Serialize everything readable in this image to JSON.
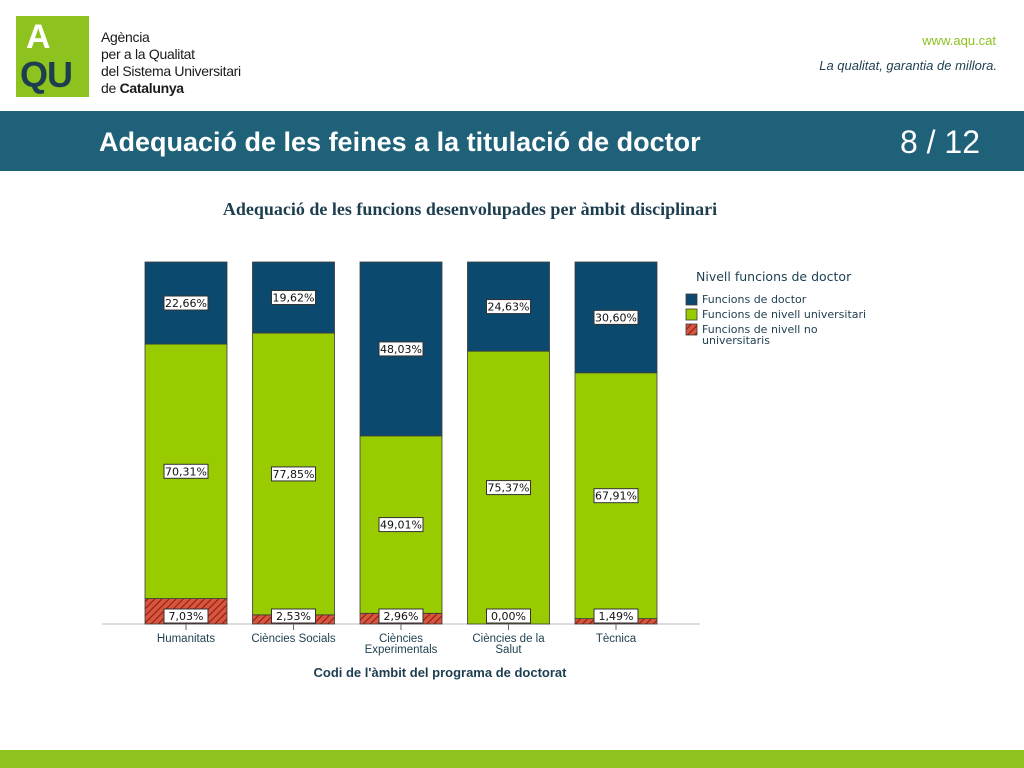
{
  "header": {
    "logo_letter_top": "A",
    "logo_letter_bottom": "QU",
    "org_line1": "Agència",
    "org_line2": "per a la Qualitat",
    "org_line3": "del Sistema Universitari",
    "org_line4_prefix": "de",
    "org_line4_bold": "Catalunya",
    "website": "www.aqu.cat",
    "motto": "La qualitat, garantia de millora."
  },
  "slide": {
    "title": "Adequació de les feines a la titulació de doctor",
    "page": "8 / 12"
  },
  "colors": {
    "doctor": "#0b4a6e",
    "university": "#99cc00",
    "non_university": "#c0392b",
    "band": "#1f6179",
    "brand_green": "#8dc21f"
  },
  "chart_data": {
    "type": "bar",
    "stacked": true,
    "percent": true,
    "title": "Adequació de les funcions desenvolupades per àmbit disciplinari",
    "xlabel": "Codi de l'àmbit del programa de doctorat",
    "ylabel": "",
    "ylim": [
      0,
      100
    ],
    "grid": false,
    "categories": [
      "Humanitats",
      "Ciències Socials",
      "Ciències Experimentals",
      "Ciències de la Salut",
      "Tècnica"
    ],
    "category_lines": [
      [
        "Humanitats"
      ],
      [
        "Ciències Socials"
      ],
      [
        "Ciències",
        "Experimentals"
      ],
      [
        "Ciències de la",
        "Salut"
      ],
      [
        "Tècnica"
      ]
    ],
    "legend_title": "Nivell funcions de doctor",
    "legend_position": "right",
    "series": [
      {
        "name": "Funcions de nivell no universitaris",
        "legend_lines": [
          "Funcions de nivell no",
          "universitaris"
        ],
        "color_key": "non_university",
        "pattern": "hatch",
        "values": [
          7.03,
          2.53,
          2.96,
          0.0,
          1.49
        ],
        "labels": [
          "7,03%",
          "2,53%",
          "2,96%",
          "0,00%",
          "1,49%"
        ]
      },
      {
        "name": "Funcions de nivell universitari",
        "legend_lines": [
          "Funcions de nivell universitari"
        ],
        "color_key": "university",
        "pattern": "solid",
        "values": [
          70.31,
          77.85,
          49.01,
          75.37,
          67.91
        ],
        "labels": [
          "70,31%",
          "77,85%",
          "49,01%",
          "75,37%",
          "67,91%"
        ]
      },
      {
        "name": "Funcions de doctor",
        "legend_lines": [
          "Funcions de doctor"
        ],
        "color_key": "doctor",
        "pattern": "solid",
        "values": [
          22.66,
          19.62,
          48.03,
          24.63,
          30.6
        ],
        "labels": [
          "22,66%",
          "19,62%",
          "48,03%",
          "24,63%",
          "30,60%"
        ]
      }
    ],
    "legend_order": [
      2,
      1,
      0
    ]
  }
}
